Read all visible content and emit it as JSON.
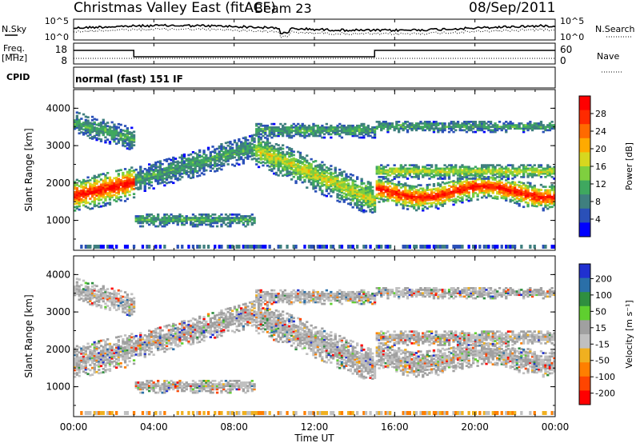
{
  "header": {
    "title": "Christmas Valley East (fitACF)",
    "beam": "Beam 23",
    "date": "08/Sep/2011"
  },
  "labels": {
    "nsky": "N.Sky",
    "nsearch": "N.Search",
    "freq": "Freq.",
    "freq_unit": "[MHz]",
    "nave": "Nave",
    "cpid_label": "CPID",
    "cpid_value": "normal (fast) 151 IF"
  },
  "colors": {
    "power_scale": [
      "#0000ff",
      "#2a50b8",
      "#3f7f7f",
      "#3fa85f",
      "#7fcf3f",
      "#d7d71f",
      "#ffaa00",
      "#ff6a00",
      "#ff2a00",
      "#ff0000"
    ],
    "velocity_scale": [
      "#2030d0",
      "#2a6fa8",
      "#2f8f3f",
      "#5fcf2f",
      "#a0a0a0",
      "#c0c0c0",
      "#f0b020",
      "#ff7f00",
      "#ff4500",
      "#ff0000"
    ]
  },
  "chart_data": [
    {
      "type": "line",
      "name": "noise",
      "x_ticks": [
        "00:00",
        "04:00",
        "08:00",
        "12:00",
        "16:00",
        "20:00",
        "00:00"
      ],
      "left_axis": {
        "label": "N.Sky",
        "ticks": [
          "10^5",
          "10^0"
        ]
      },
      "right_axis": {
        "label": "N.Search",
        "ticks": [
          "10^5",
          "10^0"
        ]
      }
    },
    {
      "type": "line",
      "name": "frequency",
      "left_axis": {
        "label": "Freq. [MHz]",
        "ticks": [
          "18",
          "8"
        ]
      },
      "right_axis": {
        "label": "Nave",
        "ticks": [
          "60",
          "0"
        ]
      }
    },
    {
      "type": "heatmap",
      "name": "power",
      "xlabel": "",
      "ylabel": "Slant Range [km]",
      "x_ticks": [
        "00:00",
        "04:00",
        "08:00",
        "12:00",
        "16:00",
        "20:00",
        "00:00"
      ],
      "y_ticks": [
        1000,
        2000,
        3000,
        4000
      ],
      "ylim": [
        200,
        4500
      ],
      "colorbar": {
        "label": "Power [dB]",
        "ticks": [
          4,
          8,
          12,
          16,
          20,
          24,
          28
        ]
      }
    },
    {
      "type": "heatmap",
      "name": "velocity",
      "xlabel": "Time UT",
      "ylabel": "Slant Range [km]",
      "x_ticks": [
        "00:00",
        "04:00",
        "08:00",
        "12:00",
        "16:00",
        "20:00",
        "00:00"
      ],
      "y_ticks": [
        1000,
        2000,
        3000,
        4000
      ],
      "ylim": [
        200,
        4500
      ],
      "colorbar": {
        "label": "Velocity [m s⁻¹]",
        "ticks": [
          200,
          100,
          50,
          15,
          -15,
          -50,
          -100,
          -200
        ]
      }
    }
  ]
}
